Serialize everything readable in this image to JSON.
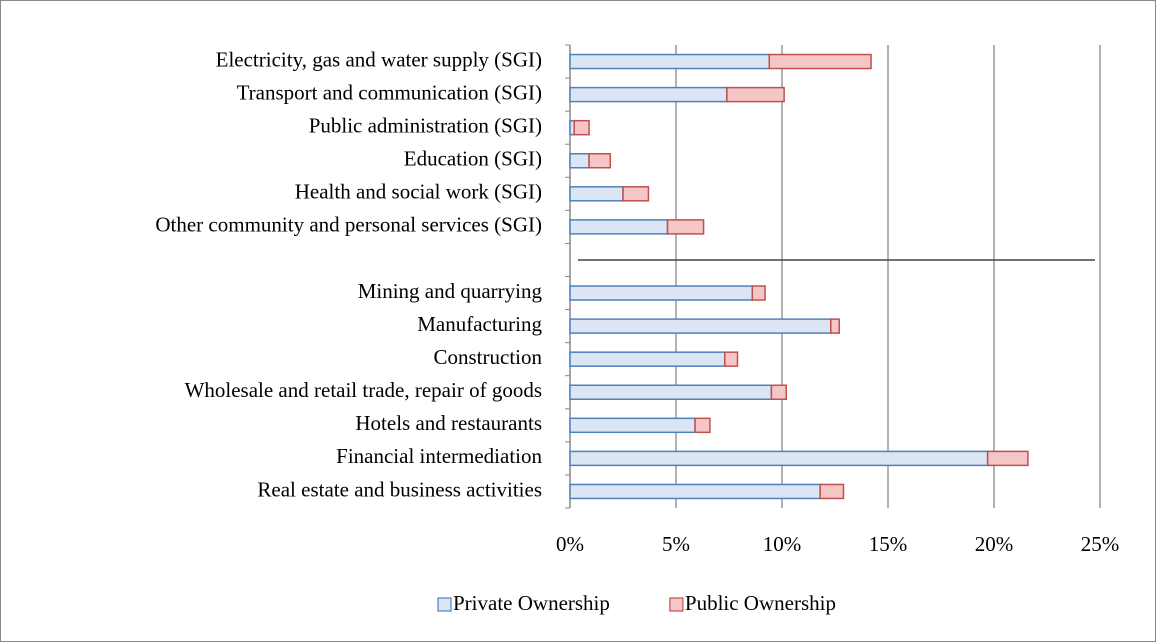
{
  "chart_data": {
    "type": "stacked-bar-horizontal",
    "categories": [
      "Electricity, gas and water supply (SGI)",
      "Transport and communication (SGI)",
      "Public administration (SGI)",
      "Education (SGI)",
      "Health and social work (SGI)",
      "Other community and personal services (SGI)",
      null,
      "Mining and quarrying",
      "Manufacturing",
      "Construction",
      "Wholesale and retail trade, repair of goods",
      "Hotels and restaurants",
      "Financial intermediation",
      "Real estate and business activities"
    ],
    "series": [
      {
        "name": "Private Ownership",
        "color": "#dbe5f3",
        "stroke": "#4f81bd",
        "values": [
          9.4,
          7.4,
          0.2,
          0.9,
          2.5,
          4.6,
          null,
          8.6,
          12.3,
          7.3,
          9.5,
          5.9,
          19.7,
          11.8
        ]
      },
      {
        "name": "Public Ownership",
        "color": "#f4c7c6",
        "stroke": "#c0504d",
        "values": [
          4.8,
          2.7,
          0.7,
          1.0,
          1.2,
          1.7,
          null,
          0.6,
          0.4,
          0.6,
          0.7,
          0.7,
          1.9,
          1.1
        ]
      }
    ],
    "xlim": [
      0,
      25
    ],
    "xticks": [
      {
        "value": 0,
        "label": "0%"
      },
      {
        "value": 5,
        "label": "5%"
      },
      {
        "value": 10,
        "label": "10%"
      },
      {
        "value": 15,
        "label": "15%"
      },
      {
        "value": 20,
        "label": "20%"
      },
      {
        "value": 25,
        "label": "25%"
      }
    ],
    "grid": true,
    "legend": "bottom"
  }
}
